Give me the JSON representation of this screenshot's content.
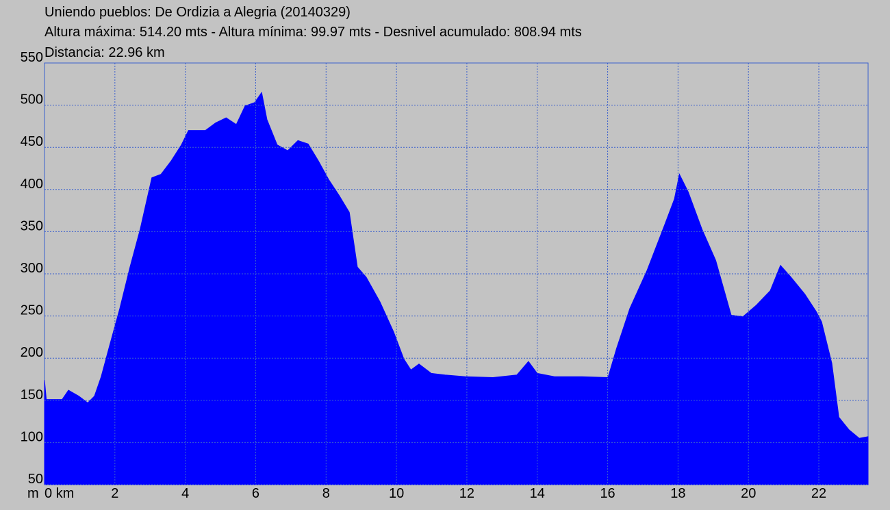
{
  "chart_data": {
    "type": "area",
    "title": "Uniendo pueblos: De Ordizia a Alegria (20140329)",
    "subtitle": "Altura máxima: 514.20 mts - Altura mínima: 99.97 mts - Desnivel acumulado: 808.94 mts",
    "distance_label": "Distancia: 22.96 km",
    "y_axis_label": "m",
    "color": "#0000ff",
    "grid": true,
    "xlim": [
      0,
      23.4
    ],
    "ylim": [
      50,
      550
    ],
    "xticks": [
      {
        "value": 0,
        "label": "0 km"
      },
      2,
      4,
      6,
      8,
      10,
      12,
      14,
      16,
      18,
      20,
      22
    ],
    "yticks": [
      50,
      100,
      150,
      200,
      250,
      300,
      350,
      400,
      450,
      500,
      550
    ],
    "x": [
      0,
      0.05,
      0.5,
      0.68,
      0.97,
      1.23,
      1.42,
      1.61,
      1.85,
      2.14,
      2.43,
      2.72,
      3.05,
      3.31,
      3.6,
      3.89,
      4.09,
      4.57,
      4.86,
      5.16,
      5.45,
      5.7,
      5.97,
      6.17,
      6.32,
      6.61,
      6.91,
      7.2,
      7.49,
      7.78,
      8.07,
      8.37,
      8.66,
      8.89,
      9.14,
      9.53,
      9.92,
      10.21,
      10.41,
      10.64,
      10.99,
      11.38,
      11.96,
      12.74,
      13.42,
      13.75,
      14.0,
      14.49,
      15.27,
      16.01,
      16.25,
      16.63,
      17.12,
      17.61,
      17.9,
      18.04,
      18.29,
      18.68,
      19.07,
      19.51,
      19.84,
      20.23,
      20.62,
      20.91,
      21.21,
      21.6,
      21.93,
      22.08,
      22.37,
      22.57,
      22.86,
      23.15,
      23.4
    ],
    "values": [
      174,
      151,
      151,
      162,
      155,
      147,
      155,
      178,
      215,
      259,
      308,
      353,
      414,
      418,
      434,
      453,
      470,
      470,
      479,
      485,
      477,
      499,
      503,
      515,
      483,
      453,
      446,
      458,
      454,
      434,
      412,
      393,
      373,
      308,
      296,
      267,
      231,
      199,
      186,
      193,
      182,
      180,
      178,
      177,
      180,
      196,
      182,
      178,
      178,
      177,
      211,
      259,
      304,
      357,
      389,
      418,
      397,
      353,
      316,
      251,
      249,
      263,
      280,
      310,
      296,
      276,
      255,
      243,
      194,
      130,
      115,
      105,
      107
    ]
  }
}
